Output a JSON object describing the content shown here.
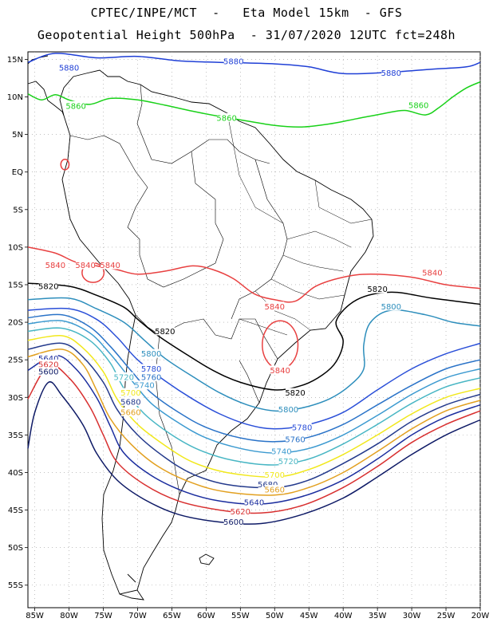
{
  "title_line1": "CPTEC/INPE/MCT  -   Eta Model 15km  - GFS",
  "title_line2": "Geopotential Height 500hPa  - 31/07/2020 12UTC fct=248h",
  "map": {
    "lon_range": [
      -86,
      -20
    ],
    "lat_range": [
      -58,
      16
    ],
    "lon_ticks": [
      {
        "value": -85,
        "label": "85W"
      },
      {
        "value": -80,
        "label": "80W"
      },
      {
        "value": -75,
        "label": "75W"
      },
      {
        "value": -70,
        "label": "70W"
      },
      {
        "value": -65,
        "label": "65W"
      },
      {
        "value": -60,
        "label": "60W"
      },
      {
        "value": -55,
        "label": "55W"
      },
      {
        "value": -50,
        "label": "50W"
      },
      {
        "value": -45,
        "label": "45W"
      },
      {
        "value": -40,
        "label": "40W"
      },
      {
        "value": -35,
        "label": "35W"
      },
      {
        "value": -30,
        "label": "30W"
      },
      {
        "value": -25,
        "label": "25W"
      },
      {
        "value": -20,
        "label": "20W"
      }
    ],
    "lat_ticks": [
      {
        "value": 15,
        "label": "15N"
      },
      {
        "value": 10,
        "label": "10N"
      },
      {
        "value": 5,
        "label": "5N"
      },
      {
        "value": 0,
        "label": "EQ"
      },
      {
        "value": -5,
        "label": "5S"
      },
      {
        "value": -10,
        "label": "10S"
      },
      {
        "value": -15,
        "label": "15S"
      },
      {
        "value": -20,
        "label": "20S"
      },
      {
        "value": -25,
        "label": "25S"
      },
      {
        "value": -30,
        "label": "30S"
      },
      {
        "value": -35,
        "label": "35S"
      },
      {
        "value": -40,
        "label": "40S"
      },
      {
        "value": -45,
        "label": "45S"
      },
      {
        "value": -50,
        "label": "50S"
      },
      {
        "value": -55,
        "label": "55S"
      }
    ],
    "grid": "dotted"
  },
  "contours": [
    {
      "level": "5880",
      "color": "#1f3fd6",
      "points": [
        [
          -86,
          14.6
        ],
        [
          -82,
          15.8
        ],
        [
          -76,
          15.2
        ],
        [
          -70,
          15.4
        ],
        [
          -64,
          14.8
        ],
        [
          -58,
          14.6
        ],
        [
          -50,
          14.4
        ],
        [
          -45,
          14.0
        ],
        [
          -40,
          13.1
        ],
        [
          -33,
          13.3
        ],
        [
          -27,
          13.7
        ],
        [
          -22,
          14.0
        ],
        [
          -20,
          14.6
        ]
      ],
      "labels": [
        [
          -80,
          13.9
        ],
        [
          -56,
          14.7
        ],
        [
          -33,
          13.2
        ]
      ]
    },
    {
      "level": "5860",
      "color": "#19d119",
      "points": [
        [
          -86,
          10.4
        ],
        [
          -84,
          9.6
        ],
        [
          -82,
          10.3
        ],
        [
          -80,
          9.6
        ],
        [
          -77,
          9.0
        ],
        [
          -74,
          9.8
        ],
        [
          -70,
          9.6
        ],
        [
          -66,
          8.9
        ],
        [
          -62,
          8.1
        ],
        [
          -58,
          7.4
        ],
        [
          -54,
          6.8
        ],
        [
          -50,
          6.2
        ],
        [
          -46,
          6.0
        ],
        [
          -42,
          6.4
        ],
        [
          -38,
          7.1
        ],
        [
          -34,
          7.8
        ],
        [
          -31,
          8.2
        ],
        [
          -28,
          7.6
        ],
        [
          -26,
          8.6
        ],
        [
          -24,
          10.0
        ],
        [
          -22,
          11.2
        ],
        [
          -20,
          12.0
        ]
      ],
      "labels": [
        [
          -79,
          8.8
        ],
        [
          -57,
          7.2
        ],
        [
          -29,
          8.9
        ]
      ]
    },
    {
      "level": "5840",
      "color": "#e84040",
      "points": [
        [
          -86,
          -10.0
        ],
        [
          -82,
          -10.8
        ],
        [
          -79,
          -12.0
        ],
        [
          -76,
          -12.5
        ],
        [
          -73,
          -13.0
        ],
        [
          -70,
          -13.6
        ],
        [
          -66,
          -13.2
        ],
        [
          -62,
          -12.5
        ],
        [
          -59,
          -13.0
        ],
        [
          -56,
          -14.2
        ],
        [
          -53,
          -16.2
        ],
        [
          -50,
          -17.0
        ],
        [
          -47,
          -17.2
        ],
        [
          -44,
          -15.2
        ],
        [
          -40,
          -14.0
        ],
        [
          -36,
          -13.6
        ],
        [
          -30,
          -14.0
        ],
        [
          -25,
          -15.0
        ],
        [
          -20,
          -15.5
        ]
      ],
      "labels": [
        [
          -82,
          -12.4
        ],
        [
          -74,
          -12.4
        ],
        [
          -50,
          -17.9
        ],
        [
          -27,
          -13.4
        ]
      ]
    },
    {
      "level": "5820",
      "color": "#000000",
      "points": [
        [
          -86,
          -14.8
        ],
        [
          -80,
          -15.2
        ],
        [
          -76,
          -16.4
        ],
        [
          -72,
          -18.0
        ],
        [
          -70,
          -19.6
        ],
        [
          -67,
          -21.8
        ],
        [
          -63,
          -24.2
        ],
        [
          -59,
          -26.4
        ],
        [
          -55,
          -28.0
        ],
        [
          -50,
          -29.0
        ],
        [
          -46,
          -28.4
        ],
        [
          -43,
          -27.0
        ],
        [
          -41,
          -25.2
        ],
        [
          -40,
          -22.5
        ],
        [
          -41,
          -19.8
        ],
        [
          -38,
          -17.0
        ],
        [
          -33,
          -16.0
        ],
        [
          -27,
          -16.8
        ],
        [
          -20,
          -17.6
        ]
      ],
      "labels": [
        [
          -83,
          -15.2
        ],
        [
          -66,
          -21.2
        ],
        [
          -47,
          -29.4
        ],
        [
          -35,
          -15.6
        ]
      ]
    },
    {
      "level": "5800",
      "color": "#2d8ebc",
      "points": [
        [
          -86,
          -17.0
        ],
        [
          -80,
          -16.8
        ],
        [
          -76,
          -18.2
        ],
        [
          -72,
          -20.0
        ],
        [
          -69,
          -22.4
        ],
        [
          -66,
          -24.8
        ],
        [
          -62,
          -27.2
        ],
        [
          -58,
          -29.4
        ],
        [
          -54,
          -31.0
        ],
        [
          -50,
          -31.8
        ],
        [
          -46,
          -31.4
        ],
        [
          -42,
          -30.2
        ],
        [
          -39,
          -28.4
        ],
        [
          -37,
          -26.2
        ],
        [
          -37,
          -23.0
        ],
        [
          -36,
          -20.0
        ],
        [
          -33,
          -18.4
        ],
        [
          -28,
          -19.0
        ],
        [
          -24,
          -20.0
        ],
        [
          -20,
          -20.5
        ]
      ],
      "labels": [
        [
          -68,
          -24.2
        ],
        [
          -48,
          -31.6
        ],
        [
          -33,
          -17.9
        ]
      ]
    },
    {
      "level": "5780",
      "color": "#2a4fd8",
      "points": [
        [
          -86,
          -18.4
        ],
        [
          -80,
          -18.2
        ],
        [
          -76,
          -19.6
        ],
        [
          -73,
          -22.0
        ],
        [
          -70,
          -25.0
        ],
        [
          -66,
          -27.8
        ],
        [
          -62,
          -30.2
        ],
        [
          -58,
          -32.2
        ],
        [
          -54,
          -33.6
        ],
        [
          -50,
          -34.2
        ],
        [
          -45,
          -33.6
        ],
        [
          -40,
          -32.0
        ],
        [
          -35,
          -29.0
        ],
        [
          -30,
          -26.2
        ],
        [
          -25,
          -24.2
        ],
        [
          -20,
          -22.8
        ]
      ],
      "labels": [
        [
          -68,
          -26.2
        ],
        [
          -46,
          -34.0
        ]
      ]
    },
    {
      "level": "5760",
      "color": "#2a73c8",
      "points": [
        [
          -86,
          -19.4
        ],
        [
          -81,
          -19.0
        ],
        [
          -77,
          -20.6
        ],
        [
          -74,
          -23.2
        ],
        [
          -71,
          -26.4
        ],
        [
          -68,
          -29.4
        ],
        [
          -64,
          -32.0
        ],
        [
          -60,
          -34.0
        ],
        [
          -55,
          -35.4
        ],
        [
          -50,
          -35.9
        ],
        [
          -45,
          -35.3
        ],
        [
          -40,
          -33.6
        ],
        [
          -35,
          -31.0
        ],
        [
          -30,
          -28.4
        ],
        [
          -25,
          -26.2
        ],
        [
          -20,
          -25.0
        ]
      ],
      "labels": [
        [
          -68,
          -27.3
        ],
        [
          -47,
          -35.6
        ]
      ]
    },
    {
      "level": "5740",
      "color": "#3c9ad0",
      "points": [
        [
          -86,
          -20.2
        ],
        [
          -81,
          -19.8
        ],
        [
          -77,
          -21.4
        ],
        [
          -74,
          -24.2
        ],
        [
          -71,
          -27.6
        ],
        [
          -68,
          -30.8
        ],
        [
          -64,
          -33.4
        ],
        [
          -60,
          -35.4
        ],
        [
          -55,
          -36.8
        ],
        [
          -50,
          -37.4
        ],
        [
          -45,
          -36.8
        ],
        [
          -40,
          -35.0
        ],
        [
          -35,
          -32.4
        ],
        [
          -30,
          -29.6
        ],
        [
          -25,
          -27.4
        ],
        [
          -20,
          -26.2
        ]
      ],
      "labels": [
        [
          -69,
          -28.4
        ],
        [
          -49,
          -37.2
        ]
      ]
    },
    {
      "level": "5720",
      "color": "#48b6c4",
      "points": [
        [
          -86,
          -21.2
        ],
        [
          -81,
          -20.8
        ],
        [
          -77,
          -22.4
        ],
        [
          -74,
          -25.4
        ],
        [
          -72,
          -28.8
        ],
        [
          -69,
          -32.2
        ],
        [
          -65,
          -35.0
        ],
        [
          -61,
          -37.0
        ],
        [
          -56,
          -38.4
        ],
        [
          -50,
          -39.0
        ],
        [
          -45,
          -38.2
        ],
        [
          -40,
          -36.2
        ],
        [
          -35,
          -33.6
        ],
        [
          -30,
          -30.8
        ],
        [
          -25,
          -28.6
        ],
        [
          -20,
          -27.4
        ]
      ],
      "labels": [
        [
          -72,
          -27.3
        ],
        [
          -48,
          -38.5
        ]
      ]
    },
    {
      "level": "5700",
      "color": "#f1e81c",
      "points": [
        [
          -86,
          -22.4
        ],
        [
          -81,
          -21.8
        ],
        [
          -78,
          -23.4
        ],
        [
          -75,
          -26.6
        ],
        [
          -73,
          -30.2
        ],
        [
          -70,
          -33.6
        ],
        [
          -66,
          -36.4
        ],
        [
          -62,
          -38.6
        ],
        [
          -57,
          -40.0
        ],
        [
          -50,
          -40.6
        ],
        [
          -45,
          -39.6
        ],
        [
          -40,
          -37.6
        ],
        [
          -35,
          -35.0
        ],
        [
          -30,
          -32.2
        ],
        [
          -25,
          -30.0
        ],
        [
          -20,
          -28.8
        ]
      ],
      "labels": [
        [
          -71,
          -29.4
        ],
        [
          -50,
          -40.3
        ]
      ]
    },
    {
      "level": "5680",
      "color": "#243a8c",
      "points": [
        [
          -86,
          -23.6
        ],
        [
          -81,
          -22.8
        ],
        [
          -78,
          -24.6
        ],
        [
          -75,
          -28.0
        ],
        [
          -73,
          -31.6
        ],
        [
          -70,
          -35.0
        ],
        [
          -66,
          -38.0
        ],
        [
          -62,
          -40.2
        ],
        [
          -57,
          -41.6
        ],
        [
          -50,
          -42.0
        ],
        [
          -45,
          -41.0
        ],
        [
          -40,
          -38.8
        ],
        [
          -35,
          -36.2
        ],
        [
          -30,
          -33.2
        ],
        [
          -25,
          -31.0
        ],
        [
          -20,
          -29.6
        ]
      ],
      "labels": [
        [
          -71,
          -30.6
        ],
        [
          -51,
          -41.6
        ]
      ]
    },
    {
      "level": "5660",
      "color": "#e2a020",
      "points": [
        [
          -86,
          -24.6
        ],
        [
          -81,
          -23.6
        ],
        [
          -78,
          -25.6
        ],
        [
          -76,
          -29.0
        ],
        [
          -74,
          -32.8
        ],
        [
          -71,
          -36.2
        ],
        [
          -67,
          -39.2
        ],
        [
          -62,
          -41.4
        ],
        [
          -57,
          -42.6
        ],
        [
          -50,
          -43.0
        ],
        [
          -45,
          -42.0
        ],
        [
          -40,
          -40.0
        ],
        [
          -35,
          -37.2
        ],
        [
          -30,
          -34.2
        ],
        [
          -25,
          -31.8
        ],
        [
          -20,
          -30.4
        ]
      ],
      "labels": [
        [
          -71,
          -32.0
        ],
        [
          -50,
          -42.3
        ]
      ]
    },
    {
      "level": "5640",
      "color": "#1b2d9e",
      "points": [
        [
          -86,
          -26.4
        ],
        [
          -82,
          -24.4
        ],
        [
          -79,
          -26.2
        ],
        [
          -76,
          -30.0
        ],
        [
          -74,
          -33.8
        ],
        [
          -72,
          -37.4
        ],
        [
          -68,
          -40.4
        ],
        [
          -63,
          -42.6
        ],
        [
          -58,
          -43.8
        ],
        [
          -52,
          -44.2
        ],
        [
          -46,
          -43.2
        ],
        [
          -40,
          -41.0
        ],
        [
          -35,
          -38.2
        ],
        [
          -30,
          -35.0
        ],
        [
          -25,
          -32.6
        ],
        [
          -20,
          -31.0
        ]
      ],
      "labels": [
        [
          -83,
          -24.8
        ],
        [
          -53,
          -44.0
        ]
      ]
    },
    {
      "level": "5620",
      "color": "#d83030",
      "points": [
        [
          -86,
          -30.2
        ],
        [
          -83,
          -25.8
        ],
        [
          -80,
          -27.4
        ],
        [
          -77,
          -31.2
        ],
        [
          -75,
          -35.0
        ],
        [
          -73,
          -38.6
        ],
        [
          -69,
          -41.6
        ],
        [
          -64,
          -43.8
        ],
        [
          -58,
          -45.0
        ],
        [
          -52,
          -45.4
        ],
        [
          -46,
          -44.4
        ],
        [
          -40,
          -42.0
        ],
        [
          -35,
          -39.2
        ],
        [
          -30,
          -36.0
        ],
        [
          -25,
          -33.6
        ],
        [
          -20,
          -31.8
        ]
      ],
      "labels": [
        [
          -83,
          -25.6
        ],
        [
          -55,
          -45.2
        ]
      ]
    },
    {
      "level": "5600",
      "color": "#0e1a66",
      "points": [
        [
          -86,
          -36.8
        ],
        [
          -85,
          -32.0
        ],
        [
          -83,
          -28.0
        ],
        [
          -81,
          -29.8
        ],
        [
          -78,
          -33.6
        ],
        [
          -76,
          -37.4
        ],
        [
          -73,
          -41.0
        ],
        [
          -69,
          -43.6
        ],
        [
          -64,
          -45.6
        ],
        [
          -58,
          -46.6
        ],
        [
          -52,
          -46.8
        ],
        [
          -46,
          -45.6
        ],
        [
          -40,
          -43.4
        ],
        [
          -35,
          -40.6
        ],
        [
          -30,
          -37.6
        ],
        [
          -25,
          -35.0
        ],
        [
          -20,
          -33.0
        ]
      ],
      "labels": [
        [
          -83,
          -26.6
        ],
        [
          -56,
          -46.6
        ]
      ]
    }
  ],
  "closed_contours": [
    {
      "level": "5840",
      "color": "#e84040",
      "center": [
        -49.2,
        -23.0
      ],
      "radius": [
        2.6,
        3.2
      ],
      "labels": [
        [
          -49.2,
          -26.4
        ]
      ]
    },
    {
      "level": "5840",
      "color": "#e84040",
      "center": [
        -76.5,
        -13.4
      ],
      "radius": [
        1.6,
        1.3
      ],
      "labels": [
        [
          -77.6,
          -12.4
        ]
      ]
    },
    {
      "level": "5860",
      "color": "#e84040",
      "center": [
        -80.6,
        1.0
      ],
      "radius": [
        0.6,
        0.7
      ],
      "labels": []
    }
  ]
}
